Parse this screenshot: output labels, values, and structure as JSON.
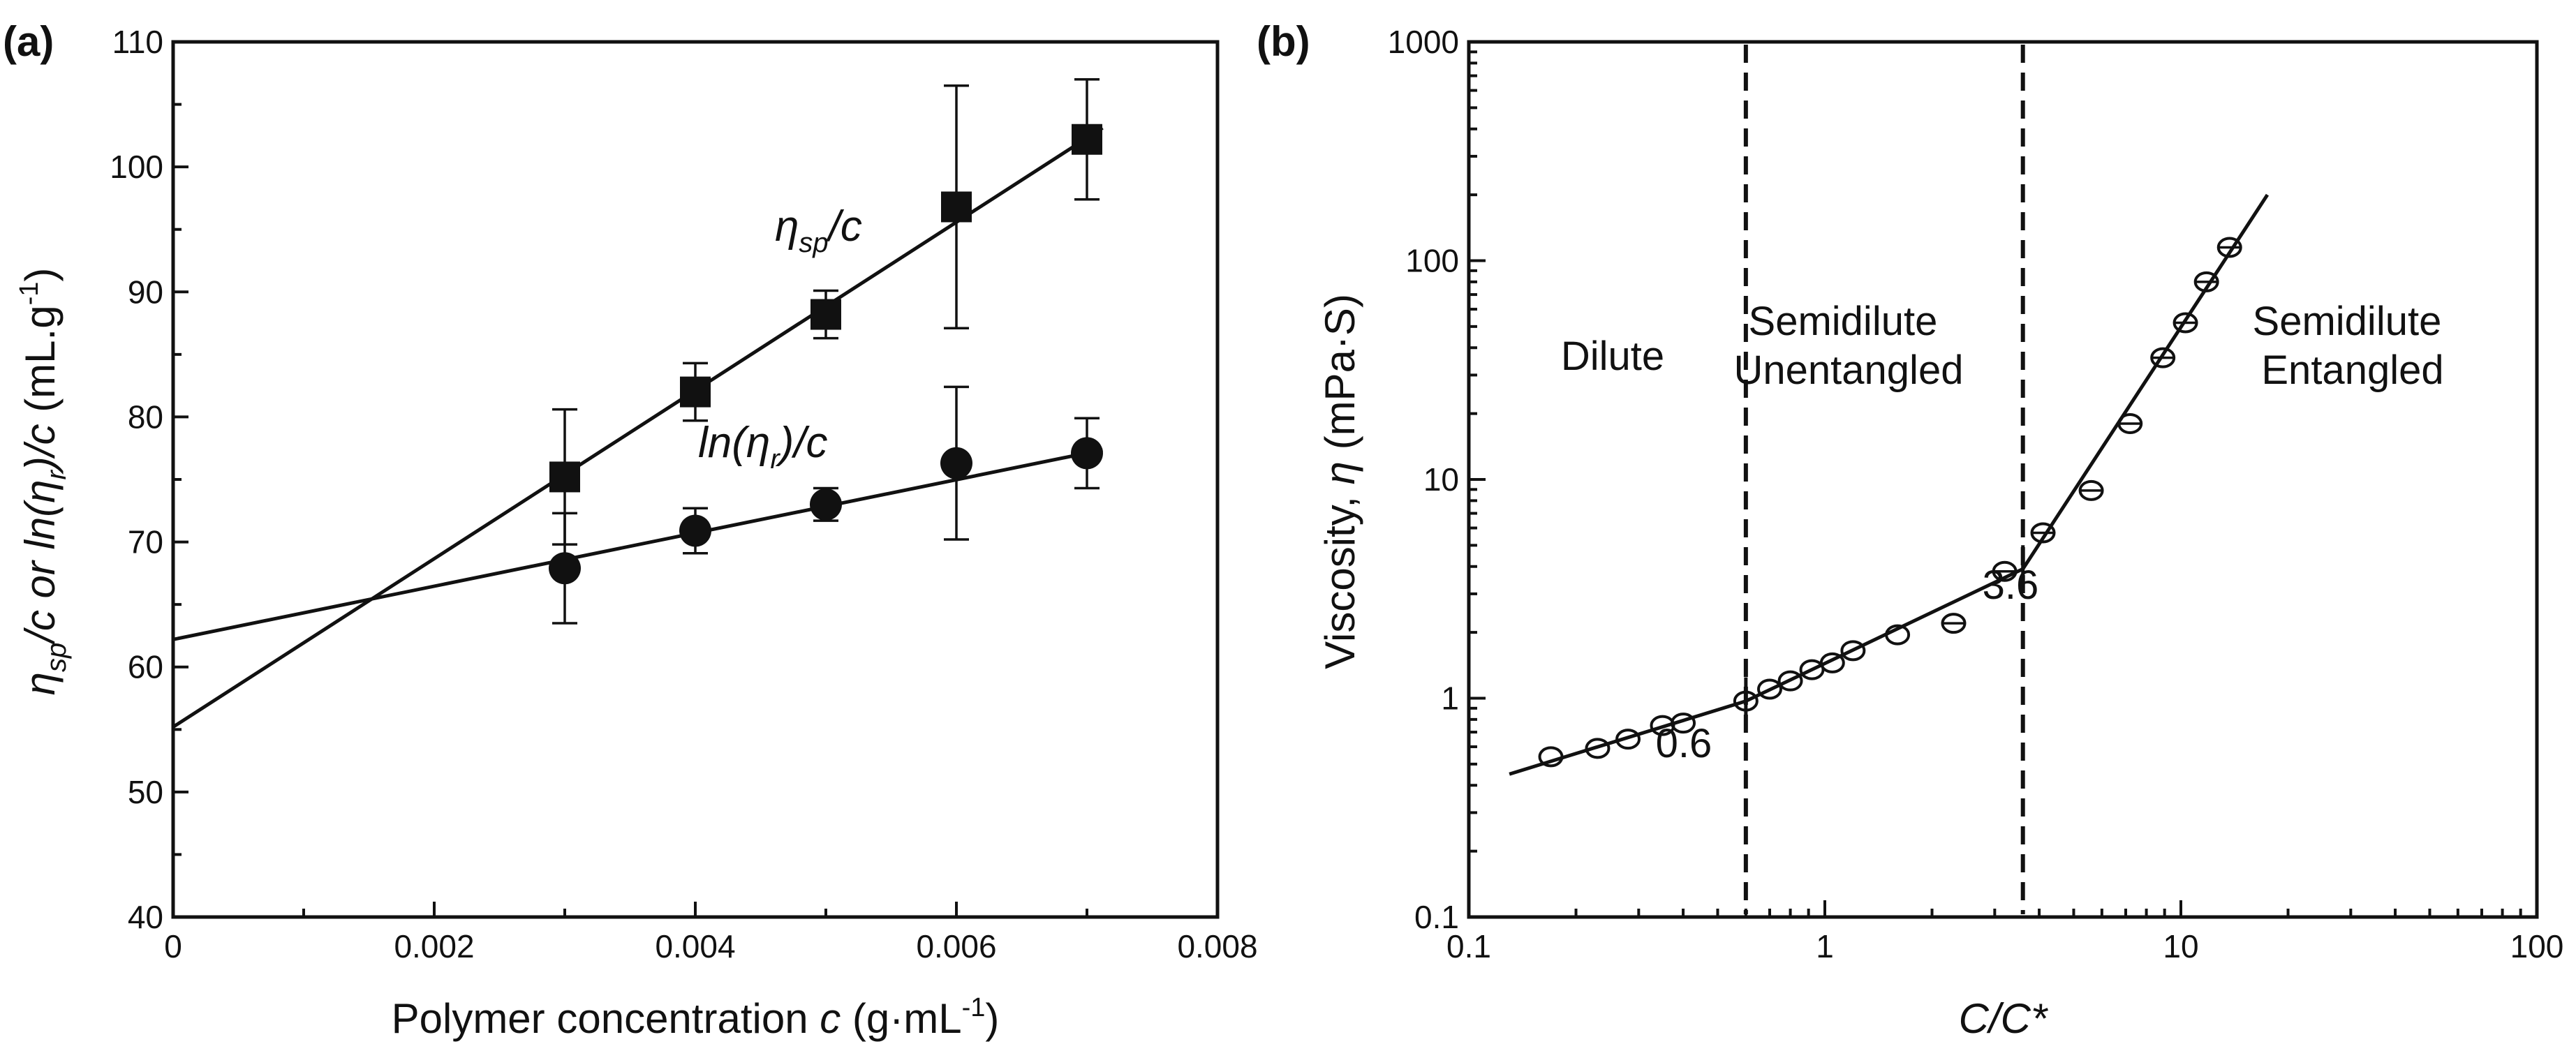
{
  "chart_data": [
    {
      "panel_label": "(a)",
      "type": "scatter",
      "x_range": [
        0,
        0.008
      ],
      "y_range": [
        40,
        110
      ],
      "x_ticks": [
        "0",
        "0.002",
        "0.004",
        "0.006",
        "0.008"
      ],
      "y_ticks": [
        "40",
        "50",
        "60",
        "70",
        "80",
        "90",
        "100",
        "110"
      ],
      "xlabel": "Polymer concentration c (g·mL⁻¹)",
      "xlabel_parts": {
        "main": "Polymer concentration ",
        "var": "c",
        "unit": " (g·mL",
        "exp": "-1",
        "close": ")"
      },
      "ylabel": "ηsp/c or ln(ηr)/c (mL·g⁻¹)",
      "ylabel_parts": {
        "eta": "η",
        "sp": "sp",
        "mid": "/c or ",
        "ln": "ln(η",
        "r": "r",
        "tail": ")/c",
        "unit": " (mL.g",
        "exp": "-1",
        "close": ")"
      },
      "series": [
        {
          "name": "ηsp/c",
          "marker": "square",
          "label_parts": {
            "eta": "η",
            "sub": "sp",
            "tail": "/c"
          },
          "x": [
            0.003,
            0.004,
            0.005,
            0.006,
            0.007
          ],
          "y": [
            75.2,
            82.0,
            88.2,
            96.8,
            102.2
          ],
          "err": [
            5.4,
            2.3,
            1.9,
            9.7,
            4.8
          ],
          "fit": {
            "intercept": 55.2,
            "slope": 6730
          }
        },
        {
          "name": "ln(ηr)/c",
          "marker": "circle",
          "label_parts": {
            "head": "ln(η",
            "sub": "r",
            "tail": ")/c"
          },
          "x": [
            0.003,
            0.004,
            0.005,
            0.006,
            0.007
          ],
          "y": [
            67.9,
            70.9,
            73.0,
            76.3,
            77.1
          ],
          "err": [
            4.4,
            1.8,
            1.3,
            6.1,
            2.8
          ],
          "fit": {
            "intercept": 62.2,
            "slope": 2130
          }
        }
      ]
    },
    {
      "panel_label": "(b)",
      "type": "scatter",
      "x_scale": "log",
      "y_scale": "log",
      "x_range": [
        0.1,
        100
      ],
      "y_range": [
        0.1,
        1000
      ],
      "x_ticks": [
        "0.1",
        "1",
        "10",
        "100"
      ],
      "y_ticks": [
        "0.1",
        "1",
        "10",
        "100",
        "1000"
      ],
      "xlabel": "C/C*",
      "ylabel": "Viscosity, η (mPa·S)",
      "ylabel_parts": {
        "main": "Viscosity, ",
        "var": "η",
        "unit": " (mPa·S)"
      },
      "x": [
        0.17,
        0.23,
        0.28,
        0.35,
        0.4,
        0.6,
        0.7,
        0.8,
        0.92,
        1.05,
        1.2,
        1.6,
        2.3,
        3.2,
        4.1,
        5.6,
        7.2,
        8.9,
        10.3,
        11.8,
        13.7
      ],
      "y": [
        0.54,
        0.59,
        0.65,
        0.75,
        0.77,
        0.97,
        1.1,
        1.2,
        1.35,
        1.45,
        1.65,
        1.95,
        2.2,
        3.8,
        5.7,
        8.9,
        18,
        36,
        52,
        80,
        115
      ],
      "xerr_rel": [
        0,
        0,
        0,
        0,
        0,
        0,
        0,
        0,
        0,
        0,
        0,
        0,
        0.07,
        0.07,
        0.07,
        0.07,
        0.07,
        0.07,
        0.07,
        0.07,
        0.07
      ],
      "fit_segments": [
        {
          "x": [
            0.13,
            0.6
          ],
          "y": [
            0.45,
            0.97
          ]
        },
        {
          "x": [
            0.6,
            3.6
          ],
          "y": [
            0.97,
            3.9
          ]
        },
        {
          "x": [
            3.6,
            17.5
          ],
          "y": [
            3.9,
            200
          ]
        }
      ],
      "boundaries": [
        {
          "x": 0.6,
          "label": "0.6"
        },
        {
          "x": 3.6,
          "label": "3.6"
        }
      ],
      "regions": [
        {
          "lines": [
            "Dilute"
          ]
        },
        {
          "lines": [
            "Semidilute",
            "Unentangled"
          ]
        },
        {
          "lines": [
            "Semidilute",
            "Entangled"
          ]
        }
      ]
    }
  ]
}
